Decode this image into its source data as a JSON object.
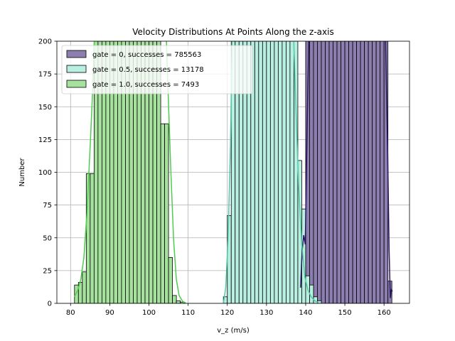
{
  "chart_data": {
    "type": "histogram",
    "title": "Velocity Distributions At Points Along the z-axis",
    "xlabel": "v_z (m/s)",
    "ylabel": "Number",
    "xlim": [
      76.5,
      166.5
    ],
    "ylim": [
      0,
      200
    ],
    "xticks": [
      80,
      90,
      100,
      110,
      120,
      130,
      140,
      150,
      160
    ],
    "yticks": [
      0,
      25,
      50,
      75,
      100,
      125,
      150,
      175,
      200
    ],
    "grid": true,
    "legend_position": "top-left",
    "series": [
      {
        "name": "gate = 0, successes = 785563",
        "fill": "#8c7fb0",
        "kde_color": "#2a1660",
        "bin_width": 1.0,
        "bins": [
          [
            139,
            50
          ],
          [
            140,
            200
          ],
          [
            141,
            200
          ],
          [
            142,
            200
          ],
          [
            143,
            200
          ],
          [
            144,
            200
          ],
          [
            145,
            200
          ],
          [
            146,
            200
          ],
          [
            147,
            200
          ],
          [
            148,
            200
          ],
          [
            149,
            200
          ],
          [
            150,
            200
          ],
          [
            151,
            200
          ],
          [
            152,
            200
          ],
          [
            153,
            200
          ],
          [
            154,
            200
          ],
          [
            155,
            200
          ],
          [
            156,
            200
          ],
          [
            157,
            200
          ],
          [
            158,
            200
          ],
          [
            159,
            200
          ],
          [
            160,
            200
          ],
          [
            161,
            17
          ]
        ],
        "kde": [
          [
            138.7,
            12
          ],
          [
            139.1,
            40
          ],
          [
            139.5,
            52
          ],
          [
            139.9,
            45
          ],
          [
            140.4,
            140
          ],
          [
            140.9,
            215
          ],
          [
            160.3,
            215
          ],
          [
            160.9,
            120
          ],
          [
            161.3,
            40
          ],
          [
            161.6,
            4
          ],
          [
            161.9,
            11
          ],
          [
            162.1,
            9
          ]
        ]
      },
      {
        "name": "gate = 0.5, successes = 13178",
        "fill": "#b9efe1",
        "kde_color": "#55c7a7",
        "bin_width": 1.0,
        "bins": [
          [
            119,
            5
          ],
          [
            120,
            67
          ],
          [
            121,
            200
          ],
          [
            122,
            200
          ],
          [
            123,
            200
          ],
          [
            124,
            200
          ],
          [
            125,
            200
          ],
          [
            126,
            200
          ],
          [
            127,
            200
          ],
          [
            128,
            200
          ],
          [
            129,
            200
          ],
          [
            130,
            200
          ],
          [
            131,
            200
          ],
          [
            132,
            200
          ],
          [
            133,
            200
          ],
          [
            134,
            200
          ],
          [
            135,
            200
          ],
          [
            136,
            200
          ],
          [
            137,
            200
          ],
          [
            138,
            109
          ],
          [
            139,
            72
          ],
          [
            140,
            21
          ],
          [
            141,
            14
          ],
          [
            142,
            5
          ],
          [
            143,
            2
          ]
        ],
        "kde": [
          [
            119.0,
            0
          ],
          [
            119.6,
            12
          ],
          [
            120.2,
            50
          ],
          [
            120.8,
            120
          ],
          [
            121.3,
            215
          ],
          [
            136.8,
            215
          ],
          [
            137.5,
            150
          ],
          [
            138.2,
            90
          ],
          [
            139.0,
            45
          ],
          [
            139.8,
            20
          ],
          [
            140.6,
            10
          ],
          [
            141.4,
            5
          ],
          [
            142.3,
            2
          ],
          [
            143.3,
            0.5
          ]
        ]
      },
      {
        "name": "gate = 1.0, successes = 7493",
        "fill": "#a6e29e",
        "kde_color": "#4fcc4f",
        "bin_width": 1.0,
        "bins": [
          [
            81,
            14
          ],
          [
            82,
            16
          ],
          [
            83,
            24
          ],
          [
            84,
            99
          ],
          [
            85,
            99
          ],
          [
            86,
            200
          ],
          [
            87,
            200
          ],
          [
            88,
            200
          ],
          [
            89,
            200
          ],
          [
            90,
            200
          ],
          [
            91,
            200
          ],
          [
            92,
            200
          ],
          [
            93,
            200
          ],
          [
            94,
            200
          ],
          [
            95,
            200
          ],
          [
            96,
            200
          ],
          [
            97,
            200
          ],
          [
            98,
            200
          ],
          [
            99,
            200
          ],
          [
            100,
            200
          ],
          [
            101,
            200
          ],
          [
            102,
            200
          ],
          [
            103,
            137
          ],
          [
            104,
            137
          ],
          [
            105,
            35
          ],
          [
            106,
            6
          ],
          [
            107,
            2
          ],
          [
            108,
            1
          ]
        ],
        "kde": [
          [
            81.0,
            5
          ],
          [
            81.8,
            10
          ],
          [
            82.6,
            18
          ],
          [
            83.4,
            35
          ],
          [
            84.2,
            70
          ],
          [
            85.0,
            120
          ],
          [
            85.6,
            160
          ],
          [
            86.2,
            215
          ],
          [
            104.3,
            215
          ],
          [
            104.9,
            160
          ],
          [
            105.6,
            100
          ],
          [
            106.3,
            48
          ],
          [
            107.0,
            18
          ],
          [
            107.7,
            6
          ],
          [
            108.6,
            1.5
          ],
          [
            109.4,
            0.3
          ]
        ]
      }
    ]
  }
}
